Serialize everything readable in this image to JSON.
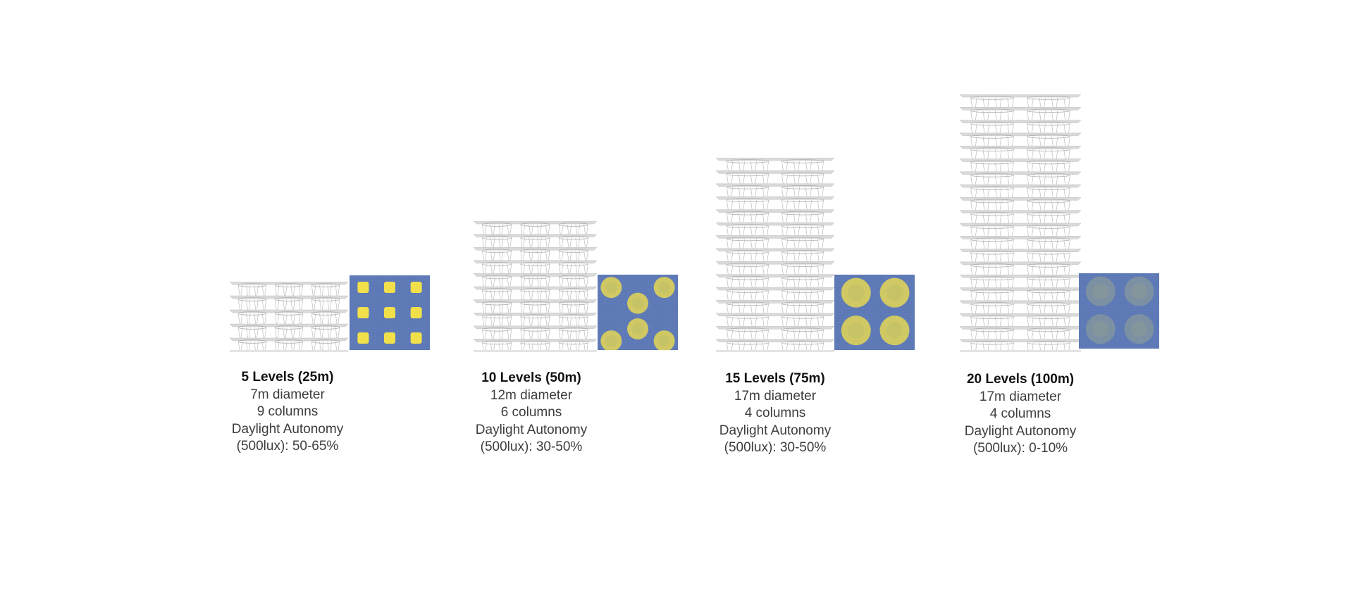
{
  "colors": {
    "heatmap_bg": "#5c78b5",
    "heatmap_grid": "#6f88c0",
    "daylight_high": "#f2e04a",
    "daylight_mid": "#d8d36a",
    "slab": "#d9d9d9",
    "column": "#bdbdbd"
  },
  "cases": [
    {
      "title": "5 Levels (25m)",
      "diameter": "7m diameter",
      "columns_text": "9 columns",
      "metric_line1": "Daylight Autonomy",
      "metric_line2": "(500lux): 50-65%",
      "levels": 5,
      "column_count": 9,
      "daylight_range_pct": [
        50,
        65
      ]
    },
    {
      "title": "10 Levels (50m)",
      "diameter": "12m diameter",
      "columns_text": "6 columns",
      "metric_line1": "Daylight Autonomy",
      "metric_line2": "(500lux): 30-50%",
      "levels": 10,
      "column_count": 6,
      "daylight_range_pct": [
        30,
        50
      ]
    },
    {
      "title": "15 Levels (75m)",
      "diameter": "17m diameter",
      "columns_text": "4 columns",
      "metric_line1": "Daylight Autonomy",
      "metric_line2": "(500lux): 30-50%",
      "levels": 15,
      "column_count": 4,
      "daylight_range_pct": [
        30,
        50
      ]
    },
    {
      "title": "20 Levels (100m)",
      "diameter": "17m diameter",
      "columns_text": "4 columns",
      "metric_line1": "Daylight Autonomy",
      "metric_line2": "(500lux): 0-10%",
      "levels": 20,
      "column_count": 4,
      "daylight_range_pct": [
        0,
        10
      ]
    }
  ]
}
